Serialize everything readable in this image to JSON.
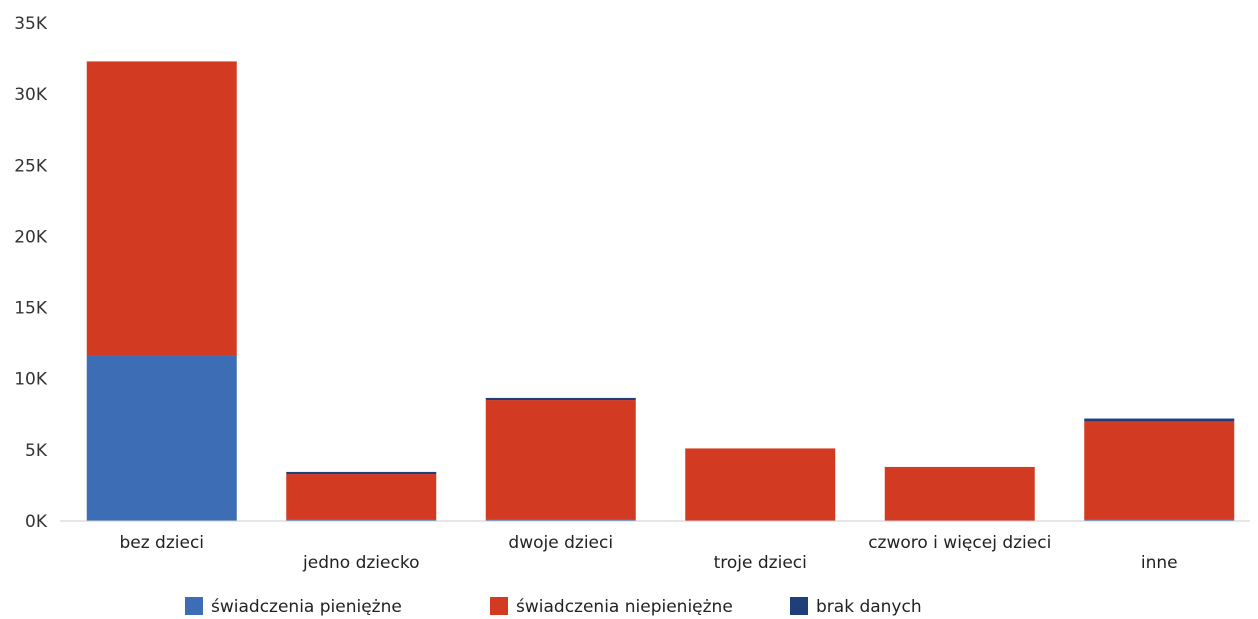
{
  "chart_data": {
    "type": "bar",
    "stacked": true,
    "categories": [
      "bez dzieci",
      "jedno dziecko",
      "dwoje dzieci",
      "troje dzieci",
      "czworo i więcej dzieci",
      "inne"
    ],
    "series": [
      {
        "name": "świadczenia pieniężne",
        "color": "#3d6db5",
        "values": [
          11600,
          100,
          100,
          0,
          0,
          100
        ]
      },
      {
        "name": "świadczenia niepieniężne",
        "color": "#d23a22",
        "values": [
          20700,
          3200,
          8400,
          5100,
          3800,
          6900
        ]
      },
      {
        "name": "brak danych",
        "color": "#1f3f7a",
        "values": [
          0,
          150,
          150,
          0,
          0,
          200
        ]
      }
    ],
    "y_ticks": [
      "0K",
      "5K",
      "10K",
      "15K",
      "20K",
      "25K",
      "30K",
      "35K"
    ],
    "ylim": [
      0,
      35000
    ],
    "grid": false,
    "legend_position": "bottom"
  }
}
